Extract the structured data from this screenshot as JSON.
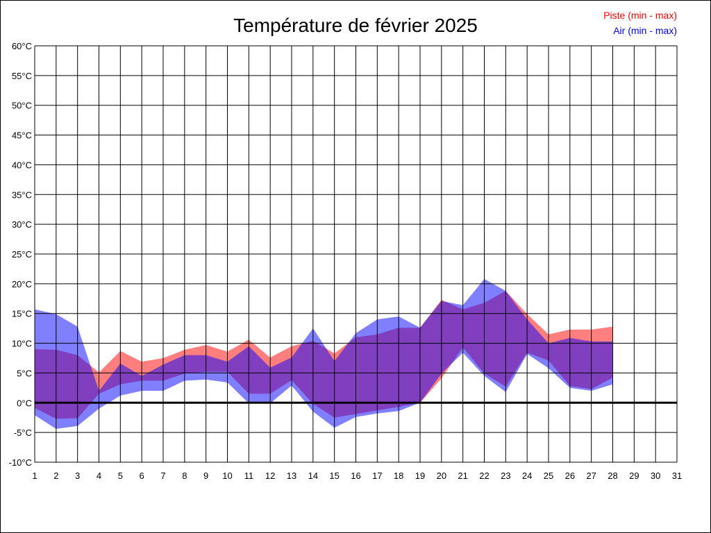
{
  "chart_data": {
    "type": "area",
    "title": "Température de février 2025",
    "xlabel": "",
    "ylabel": "",
    "x": [
      1,
      2,
      3,
      4,
      5,
      6,
      7,
      8,
      9,
      10,
      11,
      12,
      13,
      14,
      15,
      16,
      17,
      18,
      19,
      20,
      21,
      22,
      23,
      24,
      25,
      26,
      27,
      28
    ],
    "x_ticks": [
      1,
      2,
      3,
      4,
      5,
      6,
      7,
      8,
      9,
      10,
      11,
      12,
      13,
      14,
      15,
      16,
      17,
      18,
      19,
      20,
      21,
      22,
      23,
      24,
      25,
      26,
      27,
      28,
      29,
      30,
      31
    ],
    "xlim": [
      1,
      31
    ],
    "ylim": [
      -10,
      60
    ],
    "y_ticks": [
      "-10°C",
      "-5°C",
      "0°C",
      "5°C",
      "10°C",
      "15°C",
      "20°C",
      "25°C",
      "30°C",
      "35°C",
      "40°C",
      "45°C",
      "50°C",
      "55°C",
      "60°C"
    ],
    "grid": true,
    "legend_position": "top-right",
    "series": [
      {
        "name": "Piste (min - max)",
        "color": "#ff0000",
        "max": [
          9.0,
          8.9,
          8.0,
          5.1,
          8.7,
          6.9,
          7.5,
          8.9,
          9.7,
          8.6,
          10.6,
          7.6,
          9.5,
          10.4,
          8.3,
          11.0,
          11.5,
          12.6,
          12.6,
          17.3,
          15.7,
          16.8,
          18.8,
          14.9,
          11.5,
          12.3,
          12.3,
          12.8
        ],
        "min": [
          -0.9,
          -2.7,
          -2.6,
          1.5,
          3.1,
          3.7,
          3.7,
          4.9,
          5.2,
          5.2,
          1.5,
          1.5,
          3.8,
          -0.2,
          -2.5,
          -1.9,
          -1.3,
          -0.7,
          0.0,
          4.1,
          9.3,
          4.9,
          2.7,
          8.4,
          7.1,
          2.8,
          2.3,
          4.2
        ]
      },
      {
        "name": "Air (min - max)",
        "color": "#0000ff",
        "max": [
          15.7,
          14.9,
          12.8,
          2.0,
          6.6,
          4.5,
          6.4,
          8.0,
          8.0,
          6.9,
          9.5,
          5.9,
          7.6,
          12.5,
          7.0,
          11.7,
          14.0,
          14.5,
          12.6,
          17.1,
          16.4,
          20.8,
          18.8,
          14.0,
          10.0,
          10.9,
          10.3,
          10.3
        ],
        "min": [
          -2.1,
          -4.4,
          -3.9,
          -1.0,
          1.2,
          2.0,
          2.0,
          3.7,
          3.9,
          3.4,
          -0.1,
          -0.1,
          2.9,
          -1.5,
          -4.2,
          -2.4,
          -1.8,
          -1.4,
          0.0,
          4.9,
          8.4,
          4.5,
          1.8,
          8.2,
          5.8,
          2.5,
          2.0,
          3.1
        ]
      }
    ]
  }
}
